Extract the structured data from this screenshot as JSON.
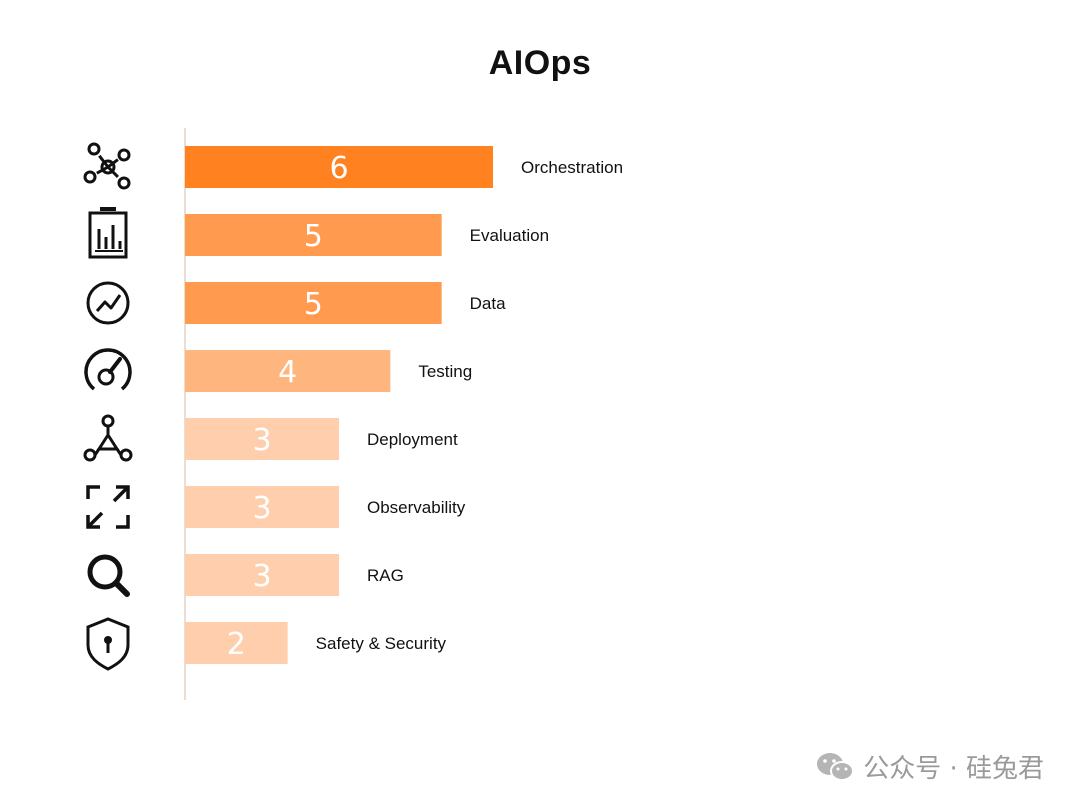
{
  "chart_data": {
    "type": "bar",
    "orientation": "horizontal",
    "title": "AIOps",
    "categories": [
      "Orchestration",
      "Evaluation",
      "Data",
      "Testing",
      "Deployment",
      "Observability",
      "RAG",
      "Safety & Security"
    ],
    "values": [
      6,
      5,
      5,
      4,
      3,
      3,
      3,
      2
    ],
    "value_labels": [
      "6",
      "5",
      "5",
      "4",
      "3",
      "3",
      "3",
      "2"
    ],
    "icons": [
      "network-icon",
      "clipboard-chart-icon",
      "trend-circle-icon",
      "gauge-icon",
      "hub-nodes-icon",
      "expand-arrows-icon",
      "search-icon",
      "shield-lock-icon"
    ],
    "bar_colors": [
      "#FF8120",
      "#FF9A4F",
      "#FF9A4F",
      "#FFB57E",
      "#FFCFAD",
      "#FFCFAD",
      "#FFCFAD",
      "#FFCFAD"
    ],
    "value_label_color": "#FFFFFF",
    "xlim": [
      0,
      6
    ],
    "grid": false,
    "legend": "none"
  },
  "watermark": {
    "text": "公众号 · 硅兔君",
    "icon": "wechat-icon"
  }
}
